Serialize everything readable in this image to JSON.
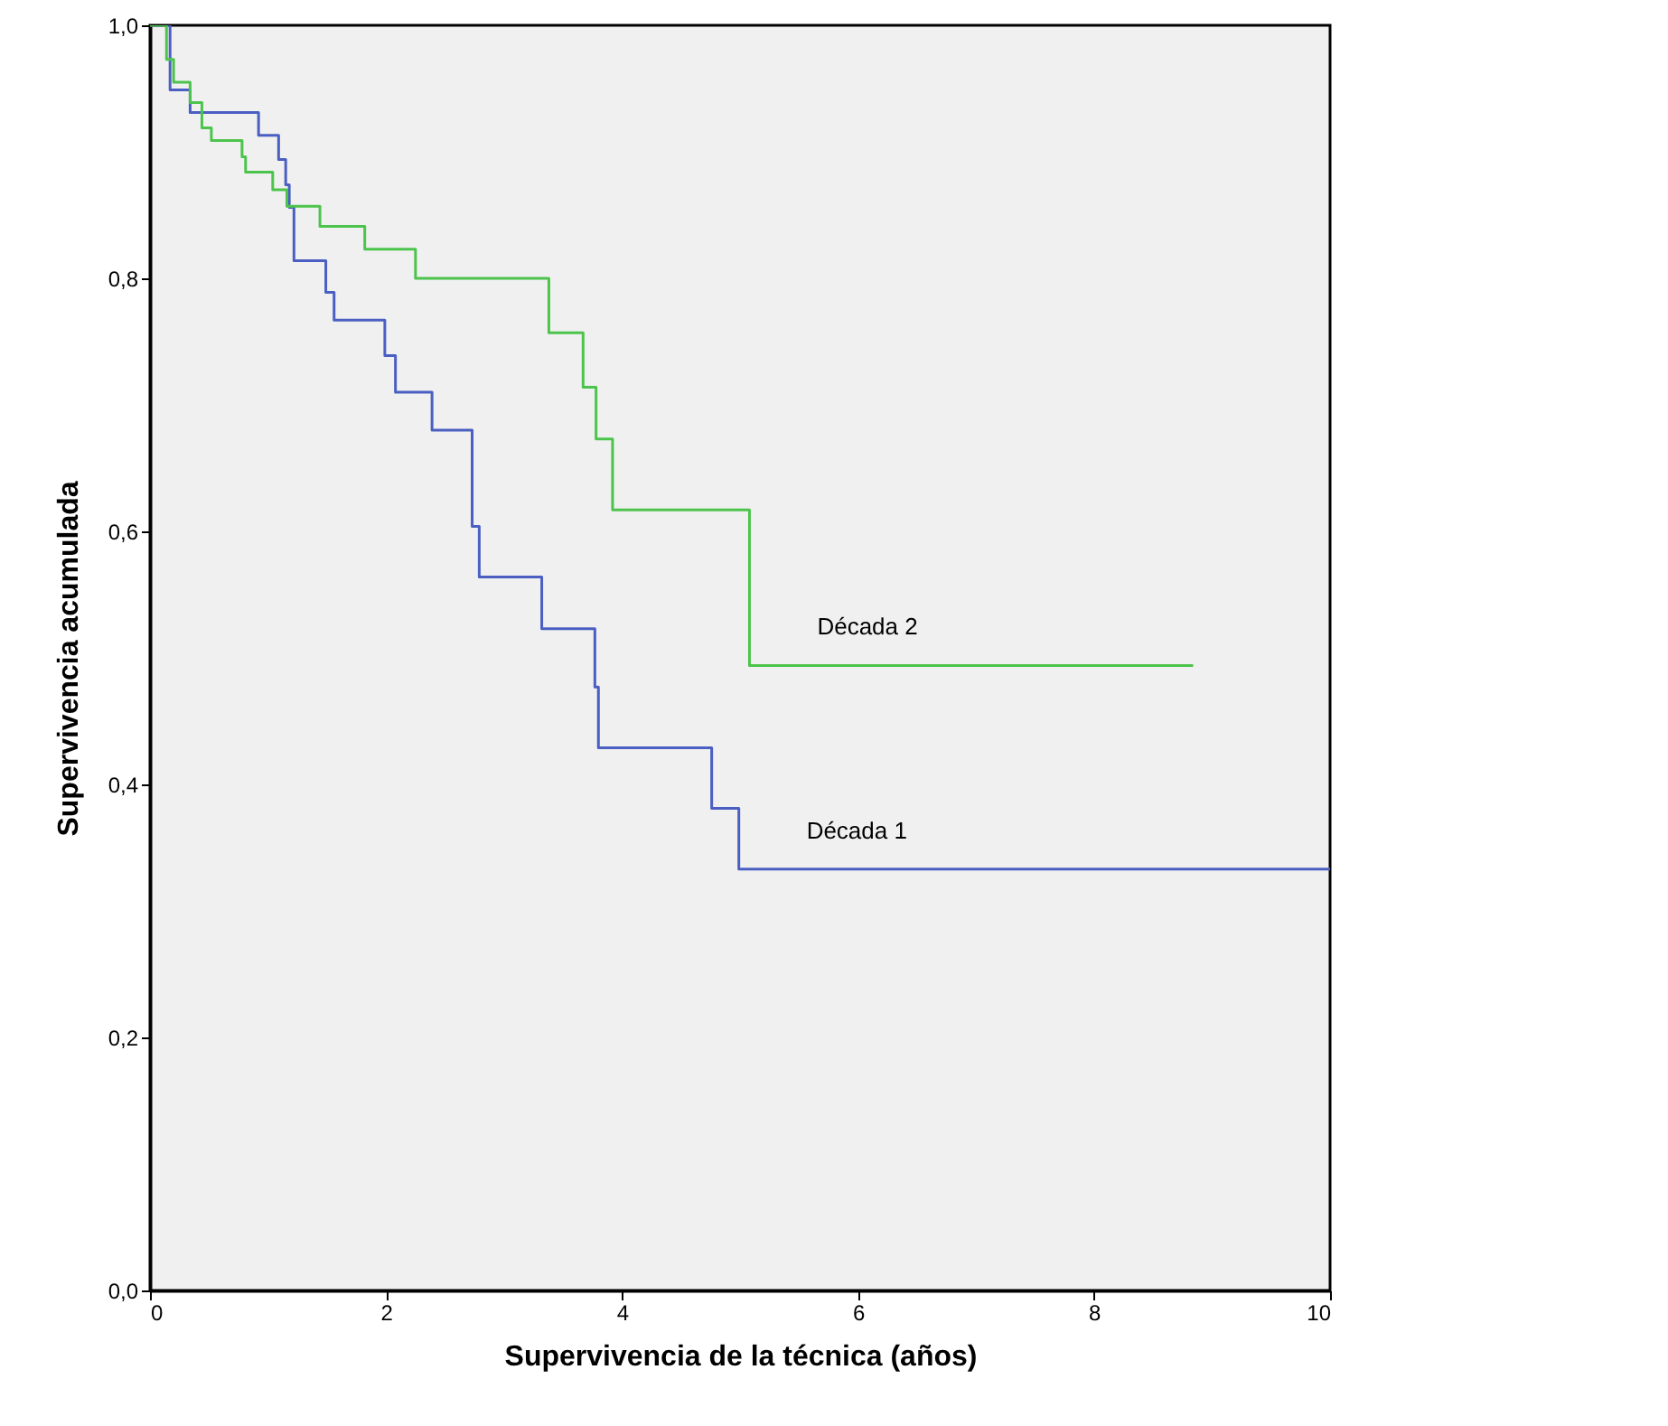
{
  "chart_data": {
    "type": "step",
    "xlabel": "Supervivencia de la técnica (años)",
    "ylabel": "Supervivencia acumulada",
    "xlim": [
      0,
      10
    ],
    "xticks": [
      0,
      2,
      4,
      6,
      8,
      10
    ],
    "ylim": [
      0,
      1
    ],
    "yticks": [
      {
        "value": 0,
        "label": "0,0"
      },
      {
        "value": 0.2,
        "label": "0,2"
      },
      {
        "value": 0.4,
        "label": "0,4"
      },
      {
        "value": 0.6,
        "label": "0,6"
      },
      {
        "value": 0.8,
        "label": "0,8"
      },
      {
        "value": 1,
        "label": "1,0"
      }
    ],
    "grid": false,
    "series": [
      {
        "name": "Década 1",
        "color": "#4a5fc1",
        "x": [
          0,
          0.17,
          0.34,
          0.92,
          1.09,
          1.15,
          1.18,
          1.22,
          1.49,
          1.56,
          1.99,
          2.08,
          2.39,
          2.73,
          2.79,
          3.32,
          3.77,
          3.8,
          4.76,
          4.99,
          10
        ],
        "values": [
          1,
          0.949,
          0.931,
          0.913,
          0.894,
          0.874,
          0.856,
          0.814,
          0.789,
          0.767,
          0.739,
          0.71,
          0.68,
          0.604,
          0.564,
          0.523,
          0.477,
          0.429,
          0.381,
          0.333,
          0.333
        ]
      },
      {
        "name": "Década 2",
        "color": "#4cc44c",
        "x": [
          0,
          0.14,
          0.2,
          0.34,
          0.44,
          0.52,
          0.78,
          0.81,
          1.04,
          1.16,
          1.44,
          1.82,
          2.25,
          3.38,
          3.67,
          3.78,
          3.92,
          5.08,
          8.84
        ],
        "values": [
          1,
          0.973,
          0.955,
          0.939,
          0.919,
          0.909,
          0.896,
          0.884,
          0.87,
          0.857,
          0.841,
          0.823,
          0.8,
          0.757,
          0.714,
          0.673,
          0.617,
          0.494,
          0.494
        ]
      }
    ]
  }
}
